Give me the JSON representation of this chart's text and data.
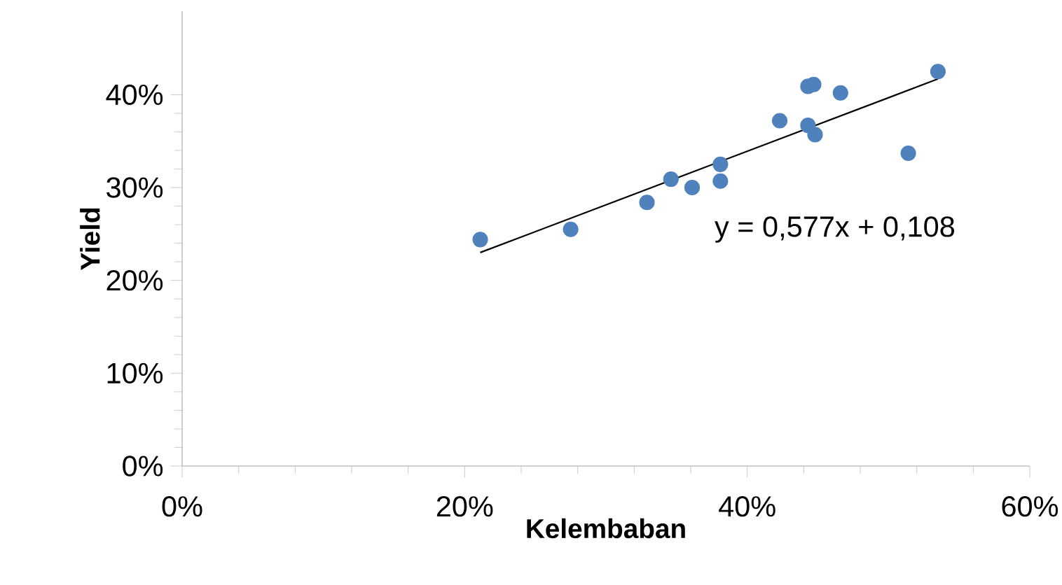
{
  "chart_data": {
    "type": "scatter",
    "xlabel": "Kelembaban",
    "ylabel": "Yield",
    "series": [
      {
        "color": "#4f81bd",
        "marker": "circle",
        "x": [
          21.1,
          27.5,
          32.9,
          34.6,
          36.1,
          38.1,
          38.1,
          42.3,
          44.3,
          44.3,
          44.7,
          44.8,
          46.6,
          51.4,
          53.5
        ],
        "values": [
          24.4,
          25.5,
          28.4,
          30.9,
          30.0,
          32.5,
          30.7,
          37.2,
          36.7,
          40.9,
          41.1,
          35.7,
          40.2,
          33.7,
          42.5
        ]
      },
      {
        "type": "line",
        "color": "#000000",
        "marker": "none",
        "line_style": "solid",
        "x": [
          21.1,
          53.5
        ],
        "values": [
          23.0,
          41.7
        ]
      }
    ],
    "annotations": [
      "y = 0,577x + 0,108"
    ],
    "xlim": [
      0,
      60
    ],
    "ylim": [
      0,
      49
    ],
    "xticks": [
      {
        "value": 0,
        "label": "0%"
      },
      {
        "value": 20,
        "label": "20%"
      },
      {
        "value": 40,
        "label": "40%"
      },
      {
        "value": 60,
        "label": "60%"
      }
    ],
    "yticks": [
      {
        "value": 0,
        "label": "0%"
      },
      {
        "value": 10,
        "label": "10%"
      },
      {
        "value": 20,
        "label": "20%"
      },
      {
        "value": 30,
        "label": "30%"
      },
      {
        "value": 40,
        "label": "40%"
      }
    ],
    "grid": false
  }
}
